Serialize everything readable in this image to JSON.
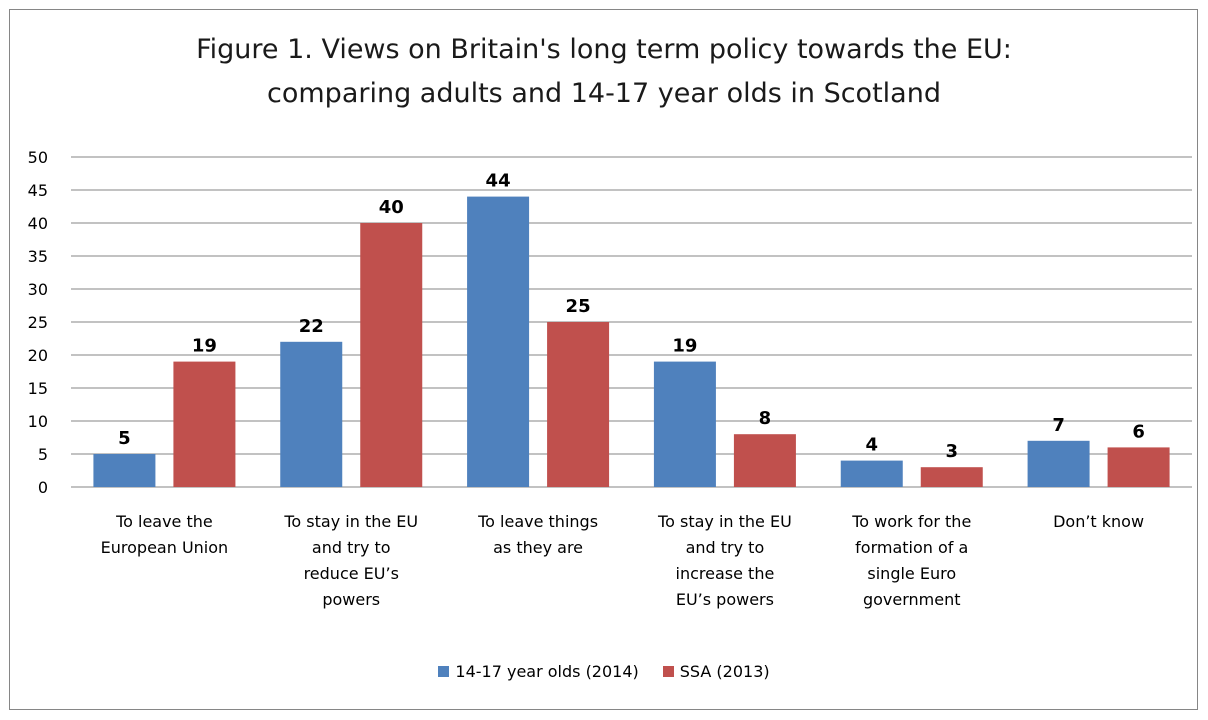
{
  "chart_data": {
    "type": "bar",
    "title_lines": [
      "Figure 1. Views on Britain's long term policy towards the EU:",
      "comparing adults and 14-17 year olds in Scotland"
    ],
    "categories": [
      [
        "To leave the",
        "European Union"
      ],
      [
        "To stay in the EU",
        "and try to",
        "reduce EU’s",
        "powers"
      ],
      [
        "To leave things",
        "as they are"
      ],
      [
        "To stay in the EU",
        "and try to",
        "increase the",
        "EU’s  powers"
      ],
      [
        "To work for the",
        "formation of a",
        "single Euro",
        "government"
      ],
      [
        "Don’t know"
      ]
    ],
    "series": [
      {
        "name": "14-17 year olds (2014)",
        "color": "#4F81BD",
        "values": [
          5,
          22,
          44,
          19,
          4,
          7
        ]
      },
      {
        "name": "SSA (2013)",
        "color": "#C0504D",
        "values": [
          19,
          40,
          25,
          8,
          3,
          6
        ]
      }
    ],
    "ylim": [
      0,
      50
    ],
    "yticks": [
      0,
      5,
      10,
      15,
      20,
      25,
      30,
      35,
      40,
      45,
      50
    ],
    "grid": true,
    "legend_position": "bottom"
  }
}
